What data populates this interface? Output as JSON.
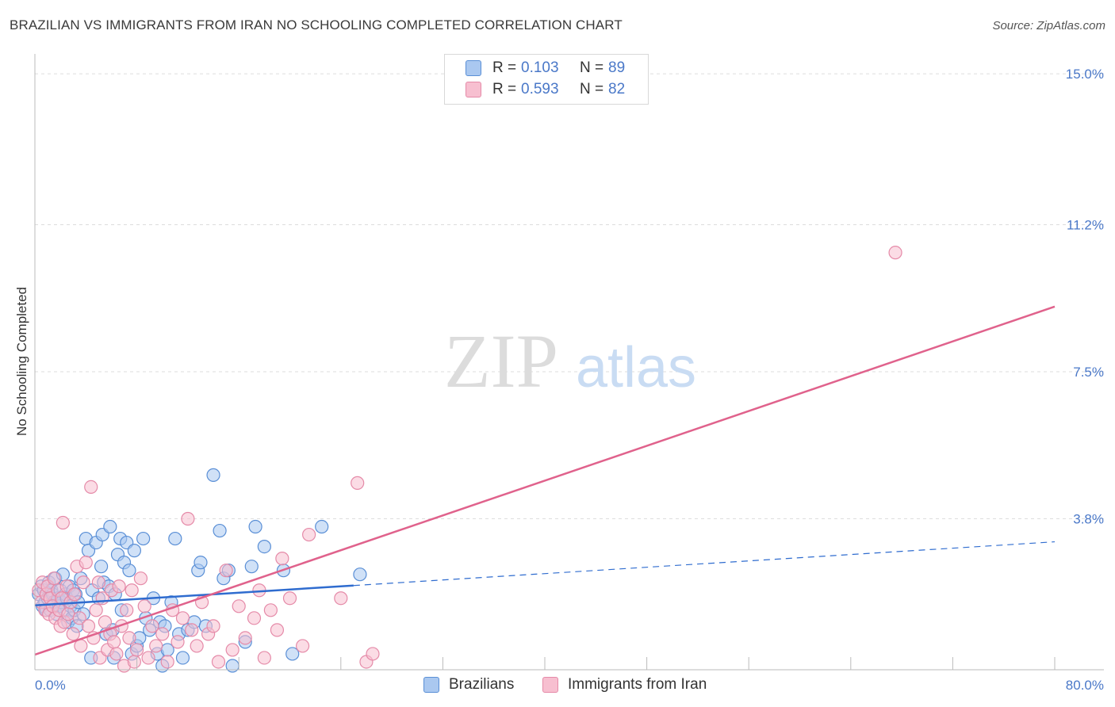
{
  "title": "BRAZILIAN VS IMMIGRANTS FROM IRAN NO SCHOOLING COMPLETED CORRELATION CHART",
  "source": "Source: ZipAtlas.com",
  "watermark": {
    "zip": "ZIP",
    "atlas": "atlas"
  },
  "colors": {
    "blue_fill": "#aac8f0",
    "blue_stroke": "#5a8fd6",
    "blue_line": "#2f6ccf",
    "pink_fill": "#f7bfd0",
    "pink_stroke": "#e58aa8",
    "pink_line": "#e0628c",
    "grid": "#dddddd",
    "tick_text": "#4a78c8"
  },
  "legend": [
    {
      "r_label": "R =",
      "r_value": "0.103",
      "n_label": "N =",
      "n_value": "89",
      "swatch": "blue"
    },
    {
      "r_label": "R =",
      "r_value": "0.593",
      "n_label": "N =",
      "n_value": "82",
      "swatch": "pink"
    }
  ],
  "bottom_legend": [
    {
      "label": "Brazilians",
      "swatch": "blue"
    },
    {
      "label": "Immigrants from Iran",
      "swatch": "pink"
    }
  ],
  "chart_data": {
    "type": "scatter",
    "title": "BRAZILIAN VS IMMIGRANTS FROM IRAN NO SCHOOLING COMPLETED CORRELATION CHART",
    "xlabel": "",
    "ylabel": "No Schooling Completed",
    "xlim": [
      0,
      80
    ],
    "ylim": [
      0,
      15.5
    ],
    "x_tick_labels": [
      {
        "value": 0,
        "label": "0.0%"
      },
      {
        "value": 80,
        "label": "80.0%"
      }
    ],
    "y_tick_labels": [
      {
        "value": 3.8,
        "label": "3.8%"
      },
      {
        "value": 7.5,
        "label": "7.5%"
      },
      {
        "value": 11.2,
        "label": "11.2%"
      },
      {
        "value": 15.0,
        "label": "15.0%"
      }
    ],
    "grid": true,
    "series": [
      {
        "name": "Brazilians",
        "color": "blue",
        "trend": {
          "x0": 0,
          "y0": 1.62,
          "x1": 25,
          "y1": 2.12,
          "dash_x1": 80,
          "dash_y1": 3.22
        },
        "points": [
          [
            0.3,
            1.9
          ],
          [
            0.5,
            2.1
          ],
          [
            0.6,
            1.6
          ],
          [
            0.7,
            2.0
          ],
          [
            0.8,
            1.7
          ],
          [
            0.9,
            1.5
          ],
          [
            1.0,
            1.8
          ],
          [
            1.1,
            2.2
          ],
          [
            1.2,
            1.5
          ],
          [
            1.3,
            2.0
          ],
          [
            1.4,
            1.9
          ],
          [
            1.5,
            1.7
          ],
          [
            1.6,
            2.3
          ],
          [
            1.7,
            1.4
          ],
          [
            1.8,
            1.8
          ],
          [
            1.9,
            1.6
          ],
          [
            2.0,
            2.0
          ],
          [
            2.1,
            1.7
          ],
          [
            2.2,
            2.4
          ],
          [
            2.3,
            1.5
          ],
          [
            2.4,
            1.9
          ],
          [
            2.5,
            1.8
          ],
          [
            2.6,
            1.2
          ],
          [
            2.7,
            2.1
          ],
          [
            2.8,
            1.6
          ],
          [
            2.9,
            1.3
          ],
          [
            3.0,
            2.0
          ],
          [
            3.1,
            1.5
          ],
          [
            3.2,
            1.9
          ],
          [
            3.3,
            1.1
          ],
          [
            3.4,
            1.7
          ],
          [
            3.6,
            2.3
          ],
          [
            3.8,
            1.4
          ],
          [
            4.0,
            3.3
          ],
          [
            4.2,
            3.0
          ],
          [
            4.4,
            0.3
          ],
          [
            4.5,
            2.0
          ],
          [
            4.8,
            3.2
          ],
          [
            5.0,
            1.8
          ],
          [
            5.2,
            2.6
          ],
          [
            5.3,
            3.4
          ],
          [
            5.4,
            2.2
          ],
          [
            5.6,
            0.9
          ],
          [
            5.8,
            2.1
          ],
          [
            5.9,
            3.6
          ],
          [
            6.1,
            1.0
          ],
          [
            6.2,
            0.3
          ],
          [
            6.3,
            1.9
          ],
          [
            6.5,
            2.9
          ],
          [
            6.7,
            3.3
          ],
          [
            6.8,
            1.5
          ],
          [
            7.0,
            2.7
          ],
          [
            7.2,
            3.2
          ],
          [
            7.4,
            2.5
          ],
          [
            7.6,
            0.4
          ],
          [
            7.8,
            3.0
          ],
          [
            8.0,
            0.6
          ],
          [
            8.2,
            0.8
          ],
          [
            8.5,
            3.3
          ],
          [
            8.7,
            1.3
          ],
          [
            9.0,
            1.0
          ],
          [
            9.3,
            1.8
          ],
          [
            9.6,
            0.4
          ],
          [
            9.8,
            1.2
          ],
          [
            10.0,
            0.1
          ],
          [
            10.2,
            1.1
          ],
          [
            10.4,
            0.5
          ],
          [
            10.7,
            1.7
          ],
          [
            11.0,
            3.3
          ],
          [
            11.3,
            0.9
          ],
          [
            11.6,
            0.3
          ],
          [
            12.0,
            1.0
          ],
          [
            12.5,
            1.2
          ],
          [
            12.8,
            2.5
          ],
          [
            13.0,
            2.7
          ],
          [
            13.4,
            1.1
          ],
          [
            14.0,
            4.9
          ],
          [
            14.5,
            3.5
          ],
          [
            14.8,
            2.3
          ],
          [
            15.2,
            2.5
          ],
          [
            15.5,
            0.1
          ],
          [
            16.5,
            0.7
          ],
          [
            17.0,
            2.6
          ],
          [
            17.3,
            3.6
          ],
          [
            18.0,
            3.1
          ],
          [
            19.5,
            2.5
          ],
          [
            20.2,
            0.4
          ],
          [
            22.5,
            3.6
          ],
          [
            25.5,
            2.4
          ]
        ]
      },
      {
        "name": "Immigrants from Iran",
        "color": "pink",
        "trend": {
          "x0": 0,
          "y0": 0.38,
          "x1": 80,
          "y1": 9.14
        },
        "points": [
          [
            0.3,
            2.0
          ],
          [
            0.5,
            1.7
          ],
          [
            0.6,
            2.2
          ],
          [
            0.8,
            1.5
          ],
          [
            0.9,
            1.9
          ],
          [
            1.0,
            2.1
          ],
          [
            1.1,
            1.4
          ],
          [
            1.2,
            1.8
          ],
          [
            1.4,
            1.6
          ],
          [
            1.5,
            2.3
          ],
          [
            1.6,
            1.3
          ],
          [
            1.8,
            2.0
          ],
          [
            1.9,
            1.5
          ],
          [
            2.0,
            1.1
          ],
          [
            2.1,
            1.8
          ],
          [
            2.2,
            3.7
          ],
          [
            2.3,
            1.2
          ],
          [
            2.5,
            2.1
          ],
          [
            2.6,
            1.4
          ],
          [
            2.8,
            1.7
          ],
          [
            3.0,
            0.9
          ],
          [
            3.1,
            1.9
          ],
          [
            3.3,
            2.6
          ],
          [
            3.5,
            1.3
          ],
          [
            3.6,
            0.6
          ],
          [
            3.8,
            2.2
          ],
          [
            4.0,
            2.7
          ],
          [
            4.2,
            1.1
          ],
          [
            4.4,
            4.6
          ],
          [
            4.6,
            0.8
          ],
          [
            4.8,
            1.5
          ],
          [
            5.0,
            2.2
          ],
          [
            5.1,
            0.3
          ],
          [
            5.3,
            1.8
          ],
          [
            5.5,
            1.2
          ],
          [
            5.7,
            0.5
          ],
          [
            5.9,
            0.9
          ],
          [
            6.0,
            2.0
          ],
          [
            6.2,
            0.7
          ],
          [
            6.4,
            0.4
          ],
          [
            6.6,
            2.1
          ],
          [
            6.8,
            1.1
          ],
          [
            7.0,
            0.1
          ],
          [
            7.2,
            1.5
          ],
          [
            7.4,
            0.8
          ],
          [
            7.6,
            2.0
          ],
          [
            7.8,
            0.2
          ],
          [
            8.0,
            0.5
          ],
          [
            8.3,
            2.3
          ],
          [
            8.6,
            1.6
          ],
          [
            8.9,
            0.3
          ],
          [
            9.2,
            1.1
          ],
          [
            9.5,
            0.6
          ],
          [
            10.0,
            0.9
          ],
          [
            10.4,
            0.2
          ],
          [
            10.8,
            1.5
          ],
          [
            11.2,
            0.7
          ],
          [
            11.6,
            1.3
          ],
          [
            12.0,
            3.8
          ],
          [
            12.3,
            1.0
          ],
          [
            12.7,
            0.6
          ],
          [
            13.1,
            1.7
          ],
          [
            13.6,
            0.9
          ],
          [
            14.0,
            1.1
          ],
          [
            14.4,
            0.2
          ],
          [
            15.0,
            2.5
          ],
          [
            15.5,
            0.5
          ],
          [
            16.0,
            1.6
          ],
          [
            16.5,
            0.8
          ],
          [
            17.2,
            1.3
          ],
          [
            17.6,
            2.0
          ],
          [
            18.0,
            0.3
          ],
          [
            18.5,
            1.5
          ],
          [
            19.0,
            1.0
          ],
          [
            19.4,
            2.8
          ],
          [
            20.0,
            1.8
          ],
          [
            21.0,
            0.6
          ],
          [
            21.5,
            3.4
          ],
          [
            24.0,
            1.8
          ],
          [
            25.3,
            4.7
          ],
          [
            26.0,
            0.2
          ],
          [
            26.5,
            0.4
          ],
          [
            67.5,
            10.5
          ]
        ]
      }
    ]
  }
}
